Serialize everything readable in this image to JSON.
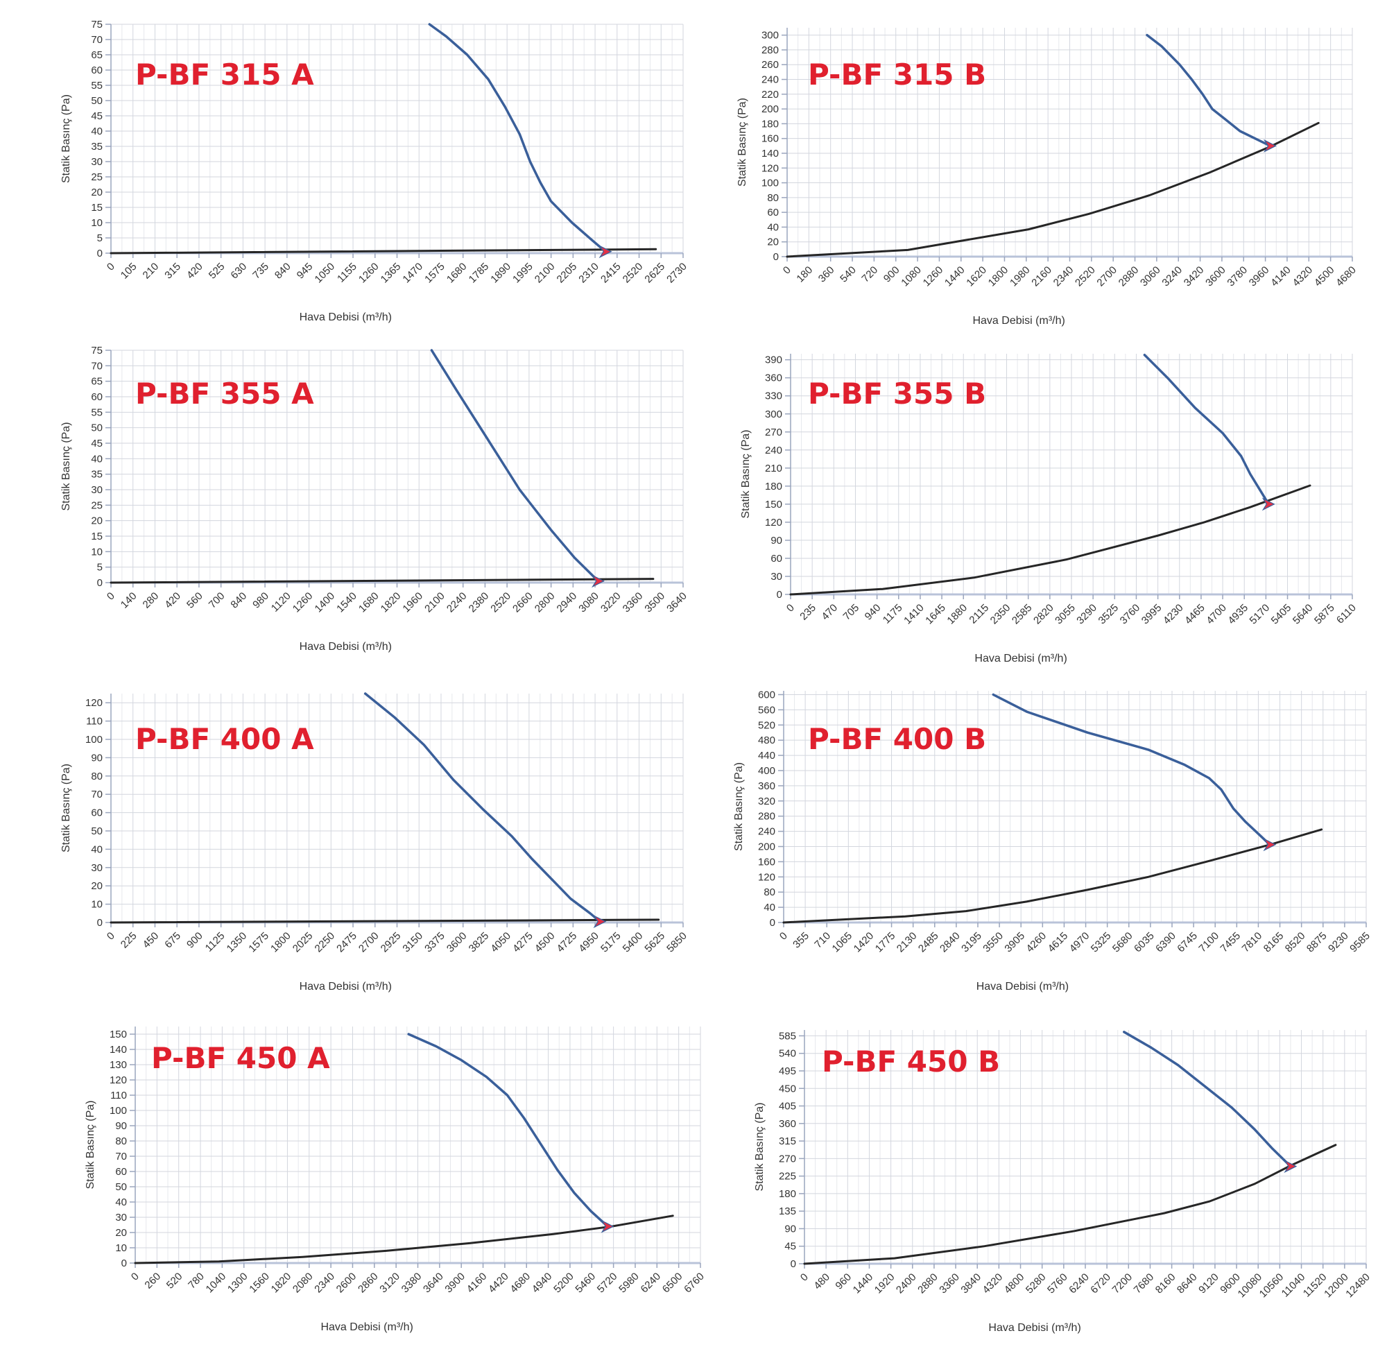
{
  "colors": {
    "title": "#e0202e",
    "fan_curve": "#3a5f9a",
    "system_curve": "#262626",
    "operating_point": "#e33145",
    "grid": "#d3d6de"
  },
  "chart_data": [
    {
      "type": "line",
      "title": "P-BF 315 A",
      "xlabel": "Hava Debisi (m³/h)",
      "ylabel": "Statik Basınç (Pa)",
      "x_ticks": [
        0,
        105,
        210,
        315,
        420,
        525,
        630,
        735,
        840,
        945,
        1050,
        1155,
        1260,
        1365,
        1470,
        1575,
        1680,
        1785,
        1890,
        1995,
        2100,
        2205,
        2310,
        2415,
        2520,
        2625,
        2730
      ],
      "y_ticks": [
        0,
        5,
        10,
        15,
        20,
        25,
        30,
        35,
        40,
        45,
        50,
        55,
        60,
        65,
        70,
        75
      ],
      "xlim": [
        0,
        2730
      ],
      "ylim": [
        0,
        75
      ],
      "series": [
        {
          "x": [
            1520,
            1600,
            1700,
            1800,
            1880,
            1950,
            2000,
            2050,
            2100,
            2200,
            2300,
            2360
          ],
          "y": [
            75,
            71,
            65,
            57,
            48,
            39,
            30,
            23,
            17,
            10,
            4,
            0.5
          ]
        },
        {
          "x": [
            0,
            2600
          ],
          "y": [
            0,
            1.3
          ]
        }
      ],
      "operating_point": {
        "x": 2360,
        "y": 0.5
      }
    },
    {
      "type": "line",
      "title": "P-BF 315 B",
      "xlabel": "Hava Debisi (m³/h)",
      "ylabel": "Statik Basınç (Pa)",
      "x_ticks": [
        0,
        180,
        360,
        540,
        720,
        900,
        1080,
        1260,
        1440,
        1620,
        1800,
        1980,
        2160,
        2340,
        2520,
        2700,
        2880,
        3060,
        3240,
        3420,
        3600,
        3780,
        3960,
        4140,
        4320,
        4500,
        4680
      ],
      "y_ticks": [
        0,
        20,
        40,
        60,
        80,
        100,
        120,
        140,
        160,
        180,
        200,
        220,
        240,
        260,
        280,
        300
      ],
      "xlim": [
        0,
        4680
      ],
      "ylim": [
        0,
        310
      ],
      "series": [
        {
          "x": [
            2980,
            3100,
            3250,
            3350,
            3440,
            3520,
            3620,
            3750,
            3900,
            4000
          ],
          "y": [
            300,
            285,
            260,
            240,
            220,
            200,
            187,
            170,
            158,
            150
          ]
        },
        {
          "x": [
            0,
            1000,
            2000,
            2500,
            3000,
            3500,
            4000,
            4400
          ],
          "y": [
            0,
            9,
            37,
            58,
            83,
            114,
            149,
            181
          ]
        }
      ],
      "operating_point": {
        "x": 4000,
        "y": 150
      }
    },
    {
      "type": "line",
      "title": "P-BF 355 A",
      "xlabel": "Hava Debisi (m³/h)",
      "ylabel": "Statik Basınç (Pa)",
      "x_ticks": [
        0,
        140,
        280,
        420,
        560,
        700,
        840,
        980,
        1120,
        1260,
        1400,
        1540,
        1680,
        1820,
        1960,
        2100,
        2240,
        2380,
        2520,
        2660,
        2800,
        2940,
        3080,
        3220,
        3360,
        3500,
        3640
      ],
      "y_ticks": [
        0,
        5,
        10,
        15,
        20,
        25,
        30,
        35,
        40,
        45,
        50,
        55,
        60,
        65,
        70,
        75
      ],
      "xlim": [
        0,
        3640
      ],
      "ylim": [
        0,
        75
      ],
      "series": [
        {
          "x": [
            2040,
            2200,
            2400,
            2600,
            2800,
            2950,
            3100
          ],
          "y": [
            75,
            62,
            46,
            30,
            17,
            8,
            0.5
          ]
        },
        {
          "x": [
            0,
            3450
          ],
          "y": [
            0,
            1.2
          ]
        }
      ],
      "operating_point": {
        "x": 3100,
        "y": 0.5
      }
    },
    {
      "type": "line",
      "title": "P-BF 355 B",
      "xlabel": "Hava Debisi (m³/h)",
      "ylabel": "Statik Basınç (Pa)",
      "x_ticks": [
        0,
        235,
        470,
        705,
        940,
        1175,
        1410,
        1645,
        1880,
        2115,
        2350,
        2585,
        2820,
        3055,
        3290,
        3525,
        3760,
        3995,
        4230,
        4465,
        4700,
        4935,
        5170,
        5405,
        5640,
        5875,
        6110
      ],
      "y_ticks": [
        0,
        30,
        60,
        90,
        120,
        150,
        180,
        210,
        240,
        270,
        300,
        330,
        360,
        390
      ],
      "xlim": [
        0,
        6110
      ],
      "ylim": [
        0,
        400
      ],
      "series": [
        {
          "x": [
            3850,
            4100,
            4400,
            4700,
            4900,
            5000,
            5100,
            5200
          ],
          "y": [
            398,
            360,
            310,
            268,
            230,
            200,
            175,
            150
          ]
        },
        {
          "x": [
            0,
            1000,
            2000,
            3000,
            4000,
            4500,
            5000,
            5650
          ],
          "y": [
            0,
            9,
            28,
            58,
            98,
            120,
            145,
            181
          ]
        }
      ],
      "operating_point": {
        "x": 5200,
        "y": 150
      }
    },
    {
      "type": "line",
      "title": "P-BF 400 A",
      "xlabel": "Hava Debisi (m³/h)",
      "ylabel": "Statik Basınç (Pa)",
      "x_ticks": [
        0,
        225,
        450,
        675,
        900,
        1125,
        1350,
        1575,
        1800,
        2025,
        2250,
        2475,
        2700,
        2925,
        3150,
        3375,
        3600,
        3825,
        4050,
        4275,
        4500,
        4725,
        4950,
        5175,
        5400,
        5625,
        5850
      ],
      "y_ticks": [
        0,
        10,
        20,
        30,
        40,
        50,
        60,
        70,
        80,
        90,
        100,
        110,
        120
      ],
      "xlim": [
        0,
        5850
      ],
      "ylim": [
        0,
        125
      ],
      "series": [
        {
          "x": [
            2600,
            2900,
            3200,
            3500,
            3800,
            4100,
            4300,
            4500,
            4700,
            4900,
            5000
          ],
          "y": [
            125,
            112,
            97,
            78,
            62,
            47,
            35,
            24,
            13,
            5,
            0.5
          ]
        },
        {
          "x": [
            0,
            5600
          ],
          "y": [
            0,
            1.5
          ]
        }
      ],
      "operating_point": {
        "x": 5000,
        "y": 0.5
      }
    },
    {
      "type": "line",
      "title": "P-BF 400 B",
      "xlabel": "Hava Debisi (m³/h)",
      "ylabel": "Statik Basınç (Pa)",
      "x_ticks": [
        0,
        355,
        710,
        1065,
        1420,
        1775,
        2130,
        2485,
        2840,
        3195,
        3550,
        3905,
        4260,
        4615,
        4970,
        5325,
        5680,
        6035,
        6390,
        6745,
        7100,
        7455,
        7810,
        8165,
        8520,
        8875,
        9230,
        9585
      ],
      "y_ticks": [
        0,
        40,
        80,
        120,
        160,
        200,
        240,
        280,
        320,
        360,
        400,
        440,
        480,
        520,
        560,
        600
      ],
      "xlim": [
        0,
        9585
      ],
      "ylim": [
        0,
        610
      ],
      "series": [
        {
          "x": [
            3450,
            4000,
            5000,
            6000,
            6600,
            7000,
            7200,
            7400,
            7600,
            7800,
            8000
          ],
          "y": [
            600,
            555,
            500,
            455,
            415,
            380,
            350,
            300,
            265,
            235,
            205
          ]
        },
        {
          "x": [
            0,
            2000,
            3000,
            4000,
            5000,
            6000,
            7000,
            8000,
            8850
          ],
          "y": [
            0,
            16,
            30,
            55,
            86,
            120,
            162,
            205,
            245
          ]
        }
      ],
      "operating_point": {
        "x": 8000,
        "y": 205
      }
    },
    {
      "type": "line",
      "title": "P-BF 450 A",
      "xlabel": "Hava Debisi (m³/h)",
      "ylabel": "Statik Basınç (Pa)",
      "x_ticks": [
        0,
        260,
        520,
        780,
        1040,
        1300,
        1560,
        1820,
        2080,
        2340,
        2600,
        2860,
        3120,
        3380,
        3640,
        3900,
        4160,
        4420,
        4680,
        4940,
        5200,
        5460,
        5720,
        5980,
        6240,
        6500,
        6760
      ],
      "y_ticks": [
        0,
        10,
        20,
        30,
        40,
        50,
        60,
        70,
        80,
        90,
        100,
        110,
        120,
        130,
        140,
        150
      ],
      "xlim": [
        0,
        6760
      ],
      "ylim": [
        0,
        155
      ],
      "series": [
        {
          "x": [
            3270,
            3600,
            3900,
            4200,
            4450,
            4650,
            4850,
            5050,
            5250,
            5450,
            5650
          ],
          "y": [
            150,
            142,
            133,
            122,
            110,
            95,
            78,
            61,
            46,
            34,
            24
          ]
        },
        {
          "x": [
            0,
            1000,
            2000,
            3000,
            4000,
            5000,
            5700,
            6430
          ],
          "y": [
            0,
            1,
            4,
            8,
            13,
            19,
            24,
            31
          ]
        }
      ],
      "operating_point": {
        "x": 5650,
        "y": 24
      }
    },
    {
      "type": "line",
      "title": "P-BF 450 B",
      "xlabel": "Hava Debisi (m³/h)",
      "ylabel": "Statik Basınç (Pa)",
      "x_ticks": [
        0,
        480,
        960,
        1440,
        1920,
        2400,
        2880,
        3360,
        3840,
        4320,
        4800,
        5280,
        5760,
        6240,
        6720,
        7200,
        7680,
        8160,
        8640,
        9120,
        9600,
        10080,
        10560,
        11040,
        11520,
        12000,
        12480
      ],
      "y_ticks": [
        0,
        45,
        90,
        135,
        180,
        225,
        270,
        315,
        360,
        405,
        450,
        495,
        540,
        585
      ],
      "xlim": [
        0,
        12480
      ],
      "ylim": [
        0,
        600
      ],
      "series": [
        {
          "x": [
            7100,
            7700,
            8300,
            8900,
            9500,
            10000,
            10400,
            10800
          ],
          "y": [
            595,
            555,
            510,
            455,
            400,
            345,
            295,
            250
          ]
        },
        {
          "x": [
            0,
            2000,
            4000,
            6000,
            8000,
            9000,
            10000,
            10800,
            11800
          ],
          "y": [
            0,
            14,
            45,
            84,
            130,
            160,
            205,
            252,
            305
          ]
        }
      ],
      "operating_point": {
        "x": 10800,
        "y": 250
      }
    }
  ]
}
